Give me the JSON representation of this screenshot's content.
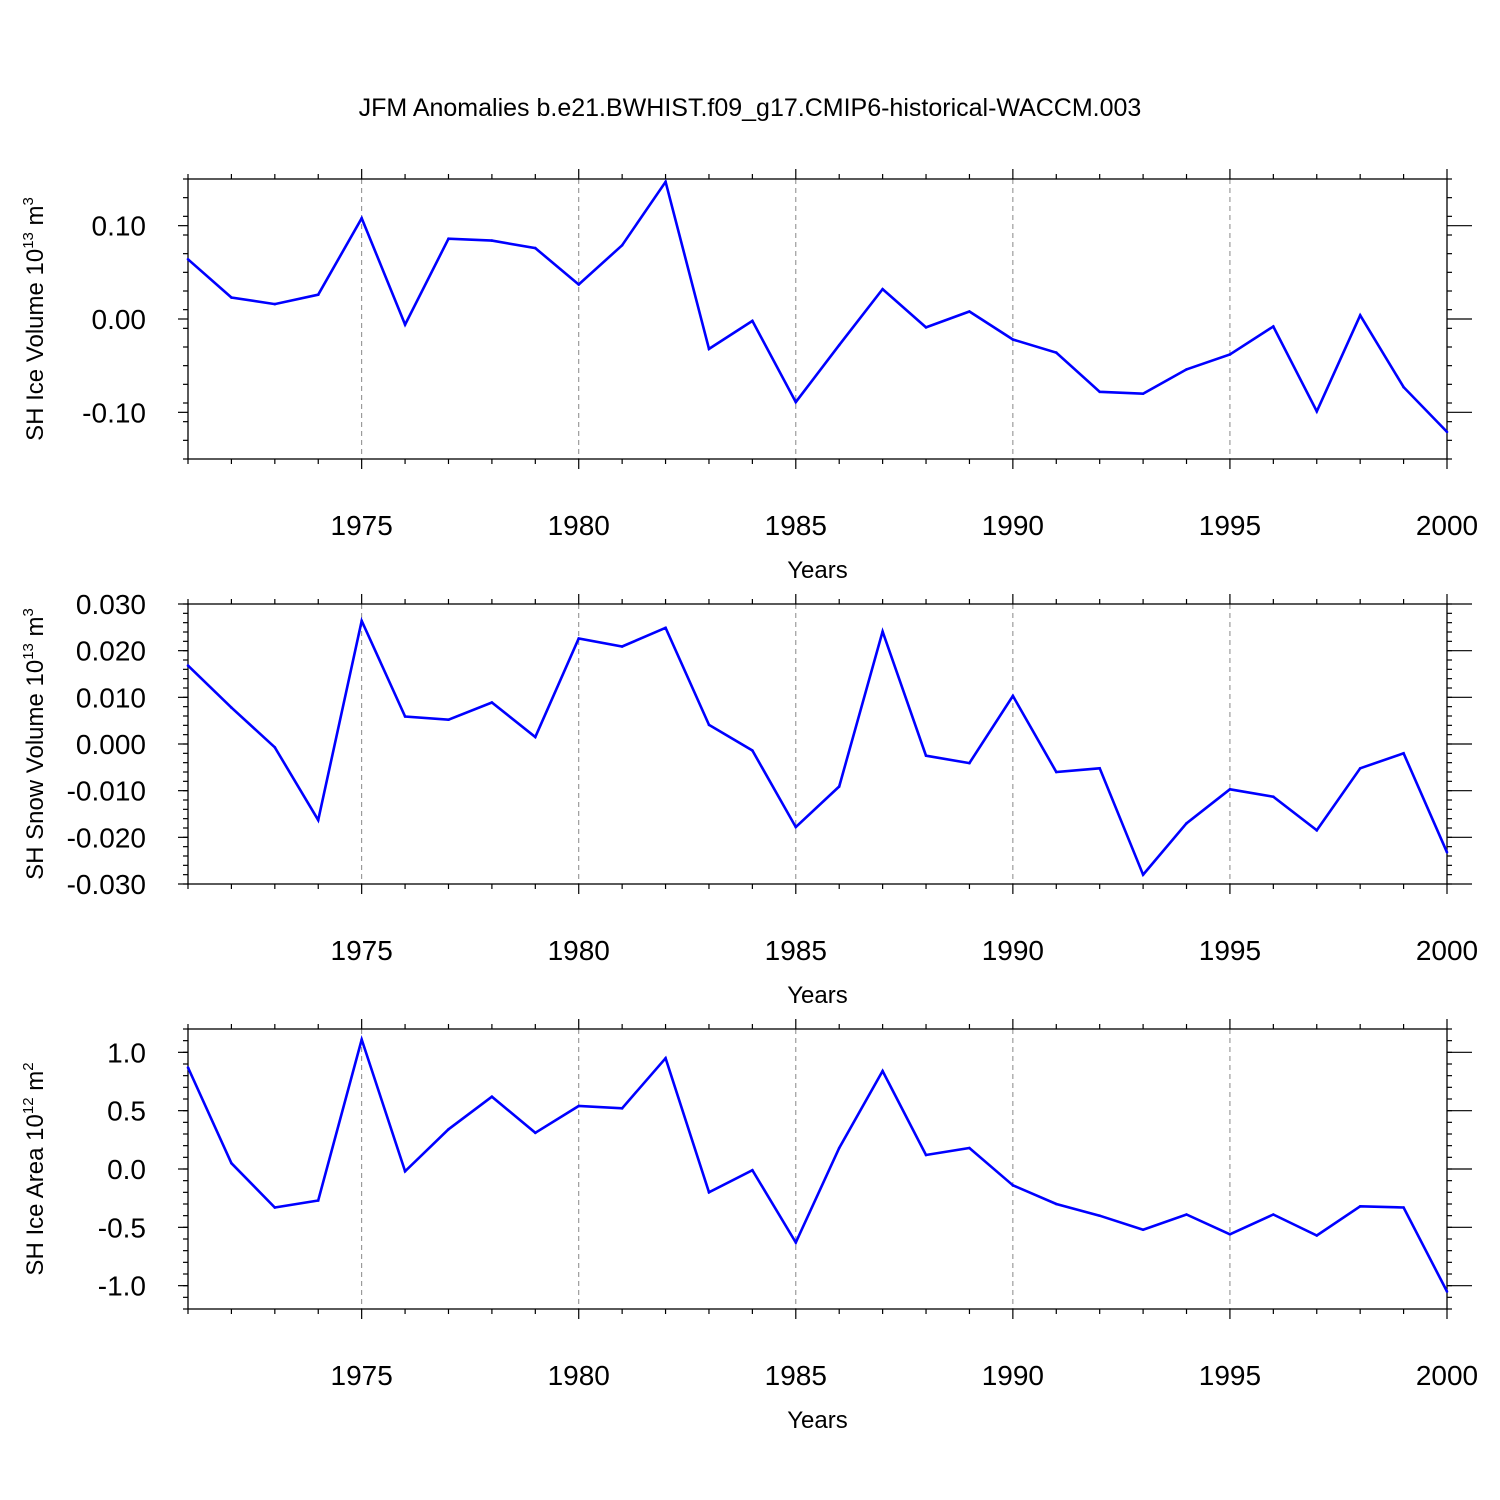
{
  "title": "JFM Anomalies b.e21.BWHIST.f09_g17.CMIP6-historical-WACCM.003",
  "colors": {
    "series": "#0000ff",
    "axis": "#000000",
    "grid": "#888888",
    "background": "#ffffff"
  },
  "chart_data": [
    {
      "type": "line",
      "name": "ice-volume",
      "xlabel": "Years",
      "ylabel": {
        "text": "SH Ice Volume 10",
        "exp": "13",
        "unit": " m",
        "unit_exp": "3"
      },
      "xlim": [
        1971,
        2000
      ],
      "ylim": [
        -0.15,
        0.15
      ],
      "xticks": [
        1975,
        1980,
        1985,
        1990,
        1995,
        2000
      ],
      "xtick_labels": [
        "1975",
        "1980",
        "1985",
        "1990",
        "1995",
        "2000"
      ],
      "yticks": [
        -0.1,
        0.0,
        0.1
      ],
      "ytick_labels": [
        "-0.10",
        "0.00",
        "0.10"
      ],
      "yminor_step": 0.02,
      "x": [
        1971,
        1972,
        1973,
        1974,
        1975,
        1976,
        1977,
        1978,
        1979,
        1980,
        1981,
        1982,
        1983,
        1984,
        1985,
        1986,
        1987,
        1988,
        1989,
        1990,
        1991,
        1992,
        1993,
        1994,
        1995,
        1996,
        1997,
        1998,
        1999,
        2000
      ],
      "values": [
        0.064,
        0.023,
        0.016,
        0.026,
        0.108,
        -0.006,
        0.086,
        0.084,
        0.076,
        0.037,
        0.079,
        0.147,
        -0.032,
        -0.002,
        -0.089,
        -0.028,
        0.032,
        -0.009,
        0.008,
        -0.022,
        -0.036,
        -0.078,
        -0.08,
        -0.054,
        -0.038,
        -0.008,
        -0.099,
        0.004,
        -0.073,
        -0.121
      ]
    },
    {
      "type": "line",
      "name": "snow-volume",
      "xlabel": "Years",
      "ylabel": {
        "text": "SH Snow Volume 10",
        "exp": "13",
        "unit": " m",
        "unit_exp": "3"
      },
      "xlim": [
        1971,
        2000
      ],
      "ylim": [
        -0.03,
        0.03
      ],
      "xticks": [
        1975,
        1980,
        1985,
        1990,
        1995,
        2000
      ],
      "xtick_labels": [
        "1975",
        "1980",
        "1985",
        "1990",
        "1995",
        "2000"
      ],
      "yticks": [
        -0.03,
        -0.02,
        -0.01,
        0.0,
        0.01,
        0.02,
        0.03
      ],
      "ytick_labels": [
        "-0.030",
        "-0.020",
        "-0.010",
        "0.000",
        "0.010",
        "0.020",
        "0.030"
      ],
      "yminor_step": 0.002,
      "x": [
        1971,
        1972,
        1973,
        1974,
        1975,
        1976,
        1977,
        1978,
        1979,
        1980,
        1981,
        1982,
        1983,
        1984,
        1985,
        1986,
        1987,
        1988,
        1989,
        1990,
        1991,
        1992,
        1993,
        1994,
        1995,
        1996,
        1997,
        1998,
        1999,
        2000
      ],
      "values": [
        0.0168,
        0.0078,
        -0.0007,
        -0.0163,
        0.0264,
        0.0059,
        0.0052,
        0.0089,
        0.0015,
        0.0226,
        0.0209,
        0.0249,
        0.0041,
        -0.0014,
        -0.0178,
        -0.0091,
        0.0241,
        -0.0025,
        -0.0041,
        0.0103,
        -0.006,
        -0.0052,
        -0.028,
        -0.017,
        -0.0097,
        -0.0113,
        -0.0185,
        -0.0052,
        -0.002,
        -0.0232
      ]
    },
    {
      "type": "line",
      "name": "ice-area",
      "xlabel": "Years",
      "ylabel": {
        "text": "SH Ice Area 10",
        "exp": "12",
        "unit": " m",
        "unit_exp": "2"
      },
      "xlim": [
        1971,
        2000
      ],
      "ylim": [
        -1.2,
        1.2
      ],
      "xticks": [
        1975,
        1980,
        1985,
        1990,
        1995,
        2000
      ],
      "xtick_labels": [
        "1975",
        "1980",
        "1985",
        "1990",
        "1995",
        "2000"
      ],
      "yticks": [
        -1.0,
        -0.5,
        0.0,
        0.5,
        1.0
      ],
      "ytick_labels": [
        "-1.0",
        "-0.5",
        "0.0",
        "0.5",
        "1.0"
      ],
      "yminor_step": 0.1,
      "x": [
        1971,
        1972,
        1973,
        1974,
        1975,
        1976,
        1977,
        1978,
        1979,
        1980,
        1981,
        1982,
        1983,
        1984,
        1985,
        1986,
        1987,
        1988,
        1989,
        1990,
        1991,
        1992,
        1993,
        1994,
        1995,
        1996,
        1997,
        1998,
        1999,
        2000
      ],
      "values": [
        0.87,
        0.05,
        -0.33,
        -0.27,
        1.11,
        -0.02,
        0.34,
        0.62,
        0.31,
        0.54,
        0.52,
        0.95,
        -0.2,
        -0.01,
        -0.63,
        0.18,
        0.84,
        0.12,
        0.18,
        -0.14,
        -0.3,
        -0.4,
        -0.52,
        -0.39,
        -0.56,
        -0.39,
        -0.57,
        -0.32,
        -0.33,
        -1.05
      ]
    }
  ]
}
